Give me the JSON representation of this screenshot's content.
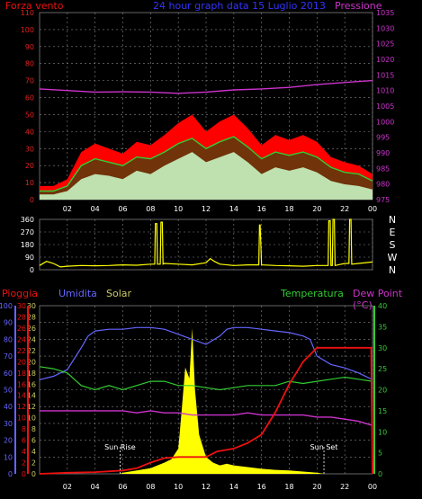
{
  "header": {
    "left": "Forza vento",
    "center": "24 hour graph data  15 Luglio 2013",
    "right": "Pressione"
  },
  "colors": {
    "wind_avg": "#ff0000",
    "wind_gust": "#33cc33",
    "wind_low": "#ccffcc",
    "pressure": "#cc33cc",
    "direction": "#ffff00",
    "rain": "#ee1111",
    "humidity": "#6666ff",
    "solar": "#ffff00",
    "temperature": "#33cc33",
    "dew_point": "#cc33cc",
    "grid": "#888888"
  },
  "chart_data": [
    {
      "type": "line",
      "title": "24 hour graph data  15 Luglio 2013",
      "ylabel": "Forza vento",
      "ylabel_right": "Pressione",
      "ylim": [
        0,
        110
      ],
      "ylim_right": [
        975,
        1035
      ],
      "y_ticks": [
        0,
        10,
        20,
        30,
        40,
        50,
        60,
        70,
        80,
        90,
        100,
        110
      ],
      "y_ticks_right": [
        975,
        980,
        985,
        990,
        995,
        1000,
        1005,
        1010,
        1015,
        1020,
        1025,
        1030,
        1035
      ],
      "x_ticks": [
        "02",
        "04",
        "06",
        "08",
        "10",
        "12",
        "14",
        "16",
        "18",
        "20",
        "22",
        "00"
      ],
      "grid": true,
      "series": [
        {
          "key": "pressure",
          "x": [
            0,
            2,
            4,
            6,
            8,
            10,
            12,
            14,
            16,
            18,
            20,
            22,
            24
          ],
          "values": [
            1010.5,
            1010,
            1009.5,
            1009.6,
            1009.5,
            1009.1,
            1009.5,
            1010.2,
            1010.5,
            1011,
            1011.9,
            1012.6,
            1013.2
          ]
        },
        {
          "key": "wind_avg",
          "x": [
            0,
            1,
            2,
            3,
            4,
            5,
            6,
            7,
            8,
            9,
            10,
            11,
            12,
            13,
            14,
            15,
            16,
            17,
            18,
            19,
            20,
            21,
            22,
            23,
            24
          ],
          "values": [
            8,
            8,
            12,
            28,
            33,
            30,
            27,
            34,
            32,
            38,
            45,
            50,
            40,
            46,
            50,
            42,
            32,
            38,
            35,
            38,
            34,
            25,
            22,
            20,
            15
          ]
        },
        {
          "key": "wind_gust",
          "x": [
            0,
            1,
            2,
            3,
            4,
            5,
            6,
            7,
            8,
            9,
            10,
            11,
            12,
            13,
            14,
            15,
            16,
            17,
            18,
            19,
            20,
            21,
            22,
            23,
            24
          ],
          "values": [
            5,
            5,
            8,
            20,
            24,
            22,
            20,
            25,
            24,
            28,
            33,
            36,
            30,
            34,
            37,
            31,
            24,
            28,
            26,
            28,
            25,
            19,
            16,
            15,
            11
          ]
        },
        {
          "key": "wind_low",
          "x": [
            0,
            1,
            2,
            3,
            4,
            5,
            6,
            7,
            8,
            9,
            10,
            11,
            12,
            13,
            14,
            15,
            16,
            17,
            18,
            19,
            20,
            21,
            22,
            23,
            24
          ],
          "values": [
            3,
            3,
            5,
            12,
            15,
            14,
            12,
            17,
            15,
            20,
            24,
            28,
            22,
            25,
            28,
            22,
            15,
            19,
            17,
            19,
            16,
            11,
            9,
            8,
            6
          ]
        }
      ]
    },
    {
      "type": "line",
      "ylim": [
        0,
        360
      ],
      "y_ticks": [
        0,
        90,
        180,
        270,
        360
      ],
      "y_ticks_right": [
        "N",
        "W",
        "S",
        "E",
        "N"
      ],
      "series": [
        {
          "key": "direction",
          "x": [
            0,
            0.5,
            1,
            1.5,
            2,
            3,
            4,
            5,
            6,
            7,
            8,
            8.3,
            8.35,
            8.45,
            8.5,
            8.7,
            8.75,
            8.85,
            8.9,
            9,
            10,
            11,
            12,
            12.3,
            12.6,
            13,
            14,
            15,
            15.8,
            15.85,
            15.9,
            16,
            17,
            18,
            19,
            20,
            20.8,
            20.85,
            20.95,
            21,
            21.1,
            21.15,
            21.25,
            21.3,
            22,
            22.3,
            22.35,
            22.45,
            22.5,
            23,
            24
          ],
          "values": [
            30,
            60,
            45,
            20,
            25,
            30,
            28,
            30,
            35,
            32,
            40,
            40,
            330,
            330,
            40,
            40,
            340,
            340,
            40,
            45,
            40,
            35,
            50,
            80,
            60,
            40,
            30,
            35,
            35,
            320,
            320,
            35,
            30,
            28,
            25,
            30,
            30,
            350,
            350,
            30,
            30,
            360,
            360,
            30,
            45,
            45,
            360,
            360,
            40,
            45,
            55
          ]
        }
      ]
    },
    {
      "type": "line",
      "legend": [
        "Pioggia",
        "Umidita",
        "Solar",
        "Temperatura",
        "Dew Point (°C)"
      ],
      "y_ticks_rain": [
        0,
        2,
        4,
        6,
        8,
        10,
        12,
        14,
        16,
        18,
        20,
        22,
        24,
        26,
        28,
        30
      ],
      "y_ticks_humidity": [
        0,
        10,
        20,
        30,
        40,
        50,
        60,
        70,
        80,
        90,
        100
      ],
      "y_ticks_solar": [
        0,
        2,
        4,
        6,
        8,
        10,
        12,
        14,
        16,
        18,
        20,
        22,
        24,
        26,
        28,
        30
      ],
      "y_ticks_temp": [
        0,
        5,
        10,
        15,
        20,
        25,
        30,
        35,
        40
      ],
      "ylim_temp": [
        0,
        40
      ],
      "ylim_humidity": [
        0,
        100
      ],
      "ylim_rain": [
        0,
        30
      ],
      "annotations": [
        "Sun Rise",
        "Sun Set"
      ],
      "annotation_x": [
        5.8,
        20.5
      ],
      "x_ticks": [
        "02",
        "04",
        "06",
        "08",
        "10",
        "12",
        "14",
        "16",
        "18",
        "20",
        "22",
        "00"
      ],
      "series": [
        {
          "key": "humidity",
          "x": [
            0,
            1,
            2,
            3,
            3.5,
            4,
            5,
            6,
            7,
            8,
            9,
            10,
            11,
            12,
            13,
            13.5,
            14,
            15,
            16,
            17,
            18,
            19,
            19.5,
            20,
            21,
            22,
            23,
            24
          ],
          "values": [
            56,
            58,
            62,
            75,
            82,
            85,
            86,
            86,
            87,
            87,
            86,
            83,
            80,
            77,
            82,
            86,
            87,
            87,
            86,
            85,
            84,
            82,
            80,
            70,
            65,
            63,
            60,
            56
          ]
        },
        {
          "key": "temperature",
          "x": [
            0,
            1,
            2,
            3,
            4,
            5,
            6,
            7,
            8,
            9,
            10,
            11,
            12,
            13,
            14,
            15,
            16,
            17,
            18,
            19,
            20,
            21,
            22,
            23,
            24
          ],
          "values": [
            25.5,
            25,
            24,
            21,
            20,
            21,
            20,
            21,
            22,
            22,
            21,
            21,
            20.5,
            20,
            20.5,
            21,
            21,
            21,
            22,
            21.5,
            22,
            22.5,
            23,
            22.5,
            22
          ]
        },
        {
          "key": "dew_point",
          "x": [
            0,
            1,
            2,
            3,
            4,
            5,
            6,
            7,
            8,
            9,
            10,
            11,
            12,
            13,
            14,
            15,
            16,
            17,
            18,
            19,
            20,
            21,
            22,
            23,
            24
          ],
          "values": [
            15,
            15,
            15,
            15,
            15,
            15,
            15,
            14.5,
            15,
            14.5,
            14.5,
            14,
            14,
            14,
            14,
            14.5,
            14,
            14,
            14,
            14,
            13.5,
            13.5,
            13,
            12.5,
            11.5
          ]
        },
        {
          "key": "rain",
          "x": [
            0,
            2,
            4,
            6,
            7,
            8,
            9,
            10,
            11,
            12,
            12.8,
            14,
            15,
            16,
            17,
            18,
            19,
            20,
            21,
            22,
            23,
            23.9,
            24
          ],
          "values": [
            0,
            0.2,
            0.3,
            0.6,
            1,
            2,
            2.8,
            3,
            3,
            3,
            4,
            4.5,
            5.5,
            7,
            11,
            16,
            20,
            22.5,
            22.5,
            22.5,
            22.5,
            22.5,
            0
          ]
        },
        {
          "key": "solar",
          "x": [
            5.8,
            6,
            7,
            8,
            8.5,
            9,
            9.5,
            10,
            10.2,
            10.5,
            10.8,
            11,
            11.2,
            11.5,
            12,
            12.5,
            13,
            13.5,
            14,
            15,
            16,
            17,
            18,
            19,
            20,
            20.5
          ],
          "values": [
            0,
            0.2,
            0.6,
            1,
            1.5,
            2,
            2.6,
            4.5,
            10,
            19,
            17,
            26,
            15,
            7,
            3,
            2,
            1.5,
            1.8,
            1.5,
            1.2,
            0.9,
            0.7,
            0.6,
            0.4,
            0.2,
            0
          ]
        }
      ]
    }
  ]
}
